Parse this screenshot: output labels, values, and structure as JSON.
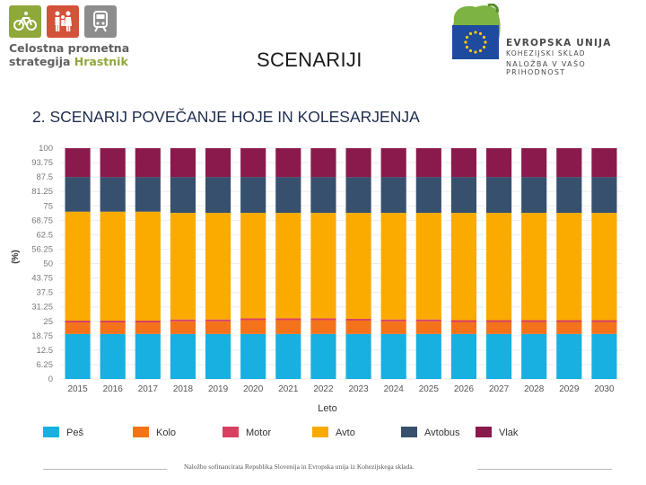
{
  "logo": {
    "line1": "Celostna prometna",
    "line2_a": "strategija",
    "line2_b": "Hrastnik"
  },
  "slide_title": "SCENARIJI",
  "eu": {
    "line1": "EVROPSKA UNIJA",
    "line2": "KOHEZIJSKI SKLAD",
    "line3": "NALOŽBA V VAŠO PRIHODNOST"
  },
  "subtitle": "2. SCENARIJ POVEČANJE HOJE IN KOLESARJENJA",
  "footer": "Naložbo sofinancirata Republika Slovenija in Evropska unija iz Kohezijskega sklada.",
  "colors": {
    "pes": "#17b0e0",
    "kolo": "#f4731a",
    "motor": "#d94060",
    "avto": "#fbab00",
    "avtobus": "#37506e",
    "vlak": "#8a1a4c"
  },
  "chart_data": {
    "type": "bar",
    "stacked": true,
    "xlabel": "Leto",
    "ylabel": "(%)",
    "ylim": [
      0,
      100
    ],
    "yticks": [
      "100",
      "93.75",
      "87.5",
      "81.25",
      "75",
      "68.75",
      "62.5",
      "56.25",
      "50",
      "43.75",
      "37.5",
      "31.25",
      "25",
      "18.75",
      "12.5",
      "6.25",
      "0"
    ],
    "categories": [
      "2015",
      "2016",
      "2017",
      "2018",
      "2019",
      "2020",
      "2021",
      "2022",
      "2023",
      "2024",
      "2025",
      "2026",
      "2027",
      "2028",
      "2029",
      "2030"
    ],
    "series": [
      {
        "name": "Peš",
        "values": [
          19.5,
          19.5,
          19.5,
          19.5,
          19.5,
          19.5,
          19.5,
          19.5,
          19.5,
          19.5,
          19.5,
          19.5,
          19.5,
          19.5,
          19.5,
          19.5
        ]
      },
      {
        "name": "Kolo",
        "values": [
          5.0,
          5.0,
          5.0,
          5.5,
          5.5,
          6.0,
          6.0,
          6.0,
          5.8,
          5.5,
          5.5,
          5.2,
          5.2,
          5.2,
          5.2,
          5.2
        ]
      },
      {
        "name": "Motor",
        "values": [
          0.8,
          0.8,
          0.8,
          0.8,
          0.8,
          0.8,
          0.8,
          0.8,
          0.8,
          0.8,
          0.8,
          0.8,
          0.8,
          0.8,
          0.8,
          0.8
        ]
      },
      {
        "name": "Avto",
        "values": [
          47.2,
          47.2,
          47.2,
          46.2,
          46.2,
          45.7,
          45.7,
          45.7,
          45.9,
          46.2,
          46.2,
          46.5,
          46.5,
          46.5,
          46.5,
          46.5
        ]
      },
      {
        "name": "Avtobus",
        "values": [
          15.0,
          15.0,
          15.0,
          15.5,
          15.5,
          15.5,
          15.5,
          15.5,
          15.5,
          15.5,
          15.5,
          15.5,
          15.5,
          15.5,
          15.5,
          15.5
        ]
      },
      {
        "name": "Vlak",
        "values": [
          12.5,
          12.5,
          12.5,
          12.5,
          12.5,
          12.5,
          12.5,
          12.5,
          12.5,
          12.5,
          12.5,
          12.5,
          12.5,
          12.5,
          12.5,
          12.5
        ]
      }
    ],
    "legend_labels": [
      "Peš",
      "Kolo",
      "Motor",
      "Avto",
      "Avtobus",
      "Vlak"
    ]
  }
}
